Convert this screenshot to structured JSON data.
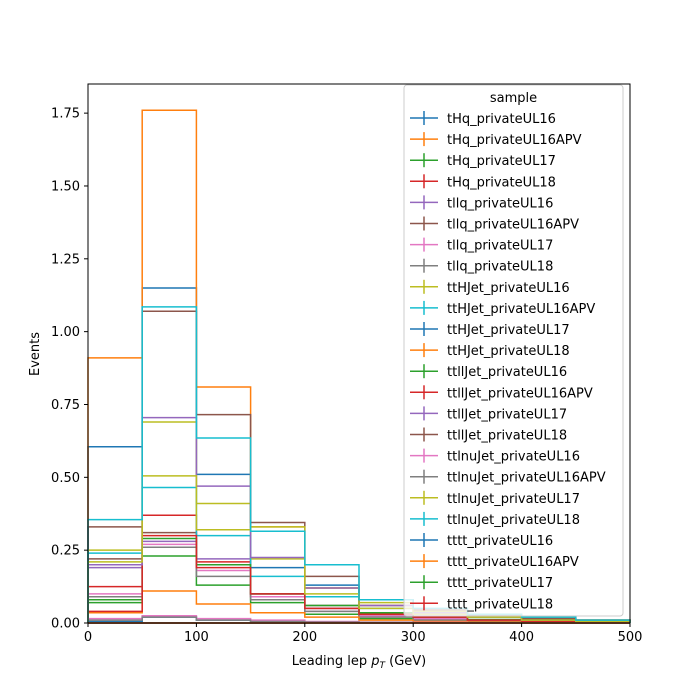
{
  "chart_data": {
    "type": "histogram-step",
    "title": "",
    "xlabel_prefix": "Leading lep ",
    "xlabel_symbol": "p",
    "xlabel_subscript": "T",
    "xlabel_suffix": " (GeV)",
    "ylabel": "Events",
    "xlim": [
      0,
      500
    ],
    "ylim": [
      0,
      1.85
    ],
    "xticks": [
      0,
      100,
      200,
      300,
      400,
      500
    ],
    "xtick_labels": [
      "0",
      "100",
      "200",
      "300",
      "400",
      "500"
    ],
    "yticks": [
      0,
      0.25,
      0.5,
      0.75,
      1.0,
      1.25,
      1.5,
      1.75
    ],
    "ytick_labels": [
      "0.00",
      "0.25",
      "0.50",
      "0.75",
      "1.00",
      "1.25",
      "1.50",
      "1.75"
    ],
    "grid": false,
    "legend_title": "sample",
    "legend_position": "top-right",
    "bin_edges": [
      0,
      50,
      100,
      150,
      200,
      250,
      300,
      350,
      400,
      450,
      500
    ],
    "series": [
      {
        "name": "tHq_privateUL16",
        "color": "#1f77b4",
        "values": [
          0.605,
          1.15,
          0.51,
          0.19,
          0.13,
          0.06,
          0.04,
          0.025,
          0.015,
          0.01
        ]
      },
      {
        "name": "tHq_privateUL16APV",
        "color": "#ff7f0e",
        "values": [
          0.91,
          1.76,
          0.81,
          0.33,
          0.12,
          0.06,
          0.04,
          0.03,
          0.02,
          0.01
        ]
      },
      {
        "name": "tHq_privateUL17",
        "color": "#2ca02c",
        "values": [
          0.08,
          0.23,
          0.13,
          0.07,
          0.03,
          0.015,
          0.01,
          0.005,
          0.003,
          0.002
        ]
      },
      {
        "name": "tHq_privateUL18",
        "color": "#d62728",
        "values": [
          0.125,
          0.37,
          0.21,
          0.09,
          0.05,
          0.03,
          0.015,
          0.01,
          0.005,
          0.003
        ]
      },
      {
        "name": "tllq_privateUL16",
        "color": "#9467bd",
        "values": [
          0.19,
          0.28,
          0.22,
          0.1,
          0.05,
          0.03,
          0.015,
          0.01,
          0.005,
          0.003
        ]
      },
      {
        "name": "tllq_privateUL16APV",
        "color": "#8c564b",
        "values": [
          0.33,
          0.31,
          0.2,
          0.1,
          0.06,
          0.03,
          0.02,
          0.01,
          0.005,
          0.003
        ]
      },
      {
        "name": "tllq_privateUL17",
        "color": "#e377c2",
        "values": [
          0.1,
          0.27,
          0.18,
          0.09,
          0.04,
          0.025,
          0.015,
          0.01,
          0.005,
          0.003
        ]
      },
      {
        "name": "tllq_privateUL18",
        "color": "#7f7f7f",
        "values": [
          0.09,
          0.26,
          0.16,
          0.08,
          0.04,
          0.02,
          0.01,
          0.005,
          0.003,
          0.002
        ]
      },
      {
        "name": "ttHJet_privateUL16",
        "color": "#bcbd22",
        "values": [
          0.25,
          0.69,
          0.41,
          0.22,
          0.12,
          0.07,
          0.04,
          0.025,
          0.015,
          0.01
        ]
      },
      {
        "name": "ttHJet_privateUL16APV",
        "color": "#17becf",
        "values": [
          0.24,
          0.465,
          0.3,
          0.16,
          0.09,
          0.05,
          0.03,
          0.02,
          0.01,
          0.005
        ]
      },
      {
        "name": "ttHJet_privateUL17",
        "color": "#1f77b4",
        "values": [
          0.005,
          0.02,
          0.01,
          0.005,
          0.003,
          0.002,
          0.001,
          0.001,
          0.0005,
          0.0005
        ]
      },
      {
        "name": "ttHJet_privateUL18",
        "color": "#ff7f0e",
        "values": [
          0.035,
          0.11,
          0.065,
          0.035,
          0.02,
          0.01,
          0.005,
          0.003,
          0.002,
          0.001
        ]
      },
      {
        "name": "ttllJet_privateUL16",
        "color": "#2ca02c",
        "values": [
          0.07,
          0.29,
          0.2,
          0.1,
          0.06,
          0.035,
          0.02,
          0.012,
          0.008,
          0.005
        ]
      },
      {
        "name": "ttllJet_privateUL16APV",
        "color": "#d62728",
        "values": [
          0.04,
          0.3,
          0.19,
          0.1,
          0.05,
          0.03,
          0.02,
          0.01,
          0.005,
          0.003
        ]
      },
      {
        "name": "ttllJet_privateUL17",
        "color": "#9467bd",
        "values": [
          0.2,
          0.705,
          0.47,
          0.225,
          0.12,
          0.06,
          0.035,
          0.02,
          0.01,
          0.005
        ]
      },
      {
        "name": "ttllJet_privateUL18",
        "color": "#8c564b",
        "values": [
          0.22,
          1.07,
          0.715,
          0.345,
          0.16,
          0.08,
          0.045,
          0.025,
          0.015,
          0.01
        ]
      },
      {
        "name": "ttlnuJet_privateUL16",
        "color": "#e377c2",
        "values": [
          0.015,
          0.025,
          0.015,
          0.01,
          0.005,
          0.003,
          0.002,
          0.001,
          0.001,
          0.0005
        ]
      },
      {
        "name": "ttlnuJet_privateUL16APV",
        "color": "#7f7f7f",
        "values": [
          0.01,
          0.02,
          0.01,
          0.005,
          0.003,
          0.002,
          0.001,
          0.001,
          0.0005,
          0.0005
        ]
      },
      {
        "name": "ttlnuJet_privateUL17",
        "color": "#bcbd22",
        "values": [
          0.21,
          0.505,
          0.32,
          0.33,
          0.1,
          0.05,
          0.03,
          0.02,
          0.01,
          0.005
        ]
      },
      {
        "name": "ttlnuJet_privateUL18",
        "color": "#17becf",
        "values": [
          0.355,
          1.085,
          0.635,
          0.315,
          0.2,
          0.08,
          0.05,
          0.03,
          0.02,
          0.01
        ]
      },
      {
        "name": "tttt_privateUL16",
        "color": "#1f77b4",
        "values": [
          0.0,
          0.0,
          0.0,
          0.0,
          0.0,
          0.0,
          0.0,
          0.0,
          0.0,
          0.0
        ]
      },
      {
        "name": "tttt_privateUL16APV",
        "color": "#ff7f0e",
        "values": [
          0.0,
          0.0,
          0.0,
          0.0,
          0.0,
          0.0,
          0.0,
          0.0,
          0.0,
          0.0
        ]
      },
      {
        "name": "tttt_privateUL17",
        "color": "#2ca02c",
        "values": [
          0.0,
          0.0,
          0.0,
          0.0,
          0.0,
          0.0,
          0.0,
          0.0,
          0.0,
          0.0
        ]
      },
      {
        "name": "tttt_privateUL18",
        "color": "#d62728",
        "values": [
          0.0,
          0.0,
          0.0,
          0.0,
          0.0,
          0.0,
          0.0,
          0.0,
          0.0,
          0.0
        ]
      }
    ]
  }
}
